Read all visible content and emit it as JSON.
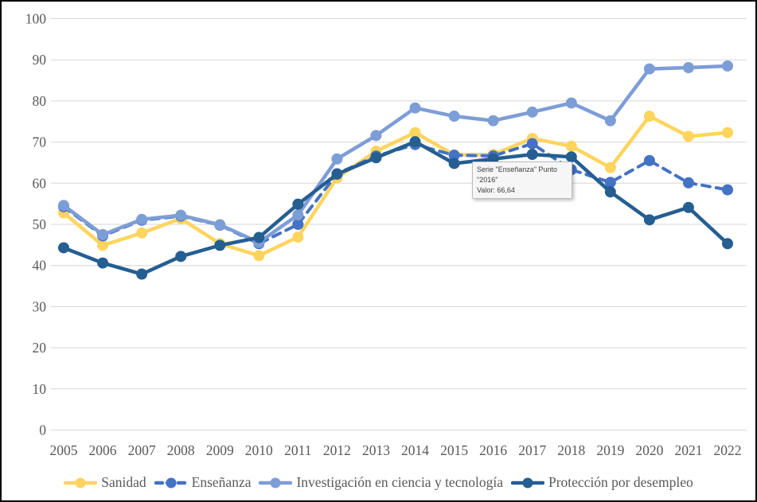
{
  "chart_data": {
    "type": "line",
    "title": "",
    "xlabel": "",
    "ylabel": "",
    "ylim": [
      0,
      100
    ],
    "ytick_step": 10,
    "grid": true,
    "legend_position": "bottom",
    "categories": [
      "2005",
      "2006",
      "2007",
      "2008",
      "2009",
      "2010",
      "2011",
      "2012",
      "2013",
      "2014",
      "2015",
      "2016",
      "2017",
      "2018",
      "2019",
      "2020",
      "2021",
      "2022"
    ],
    "series": [
      {
        "name": "Sanidad",
        "color": "#FFD45E",
        "dash": "solid",
        "values": [
          52.8,
          44.9,
          47.9,
          51.4,
          45.3,
          42.4,
          46.9,
          61.3,
          67.8,
          72.3,
          66.9,
          67.0,
          70.9,
          69.0,
          63.8,
          76.3,
          71.4,
          72.3
        ]
      },
      {
        "name": "Enseñanza",
        "color": "#4472C4",
        "dash": "dashed",
        "values": [
          54.3,
          47.2,
          51.0,
          52.0,
          49.8,
          45.3,
          50.0,
          62.3,
          66.6,
          69.4,
          66.8,
          66.64,
          69.6,
          63.3,
          60.2,
          65.5,
          60.1,
          58.4
        ]
      },
      {
        "name": "Investigación en ciencia y tecnología",
        "color": "#7D9DD6",
        "dash": "solid",
        "values": [
          54.6,
          47.5,
          51.2,
          52.2,
          49.9,
          45.6,
          52.3,
          65.9,
          71.6,
          78.3,
          76.3,
          75.2,
          77.3,
          79.5,
          75.2,
          87.8,
          88.1,
          88.5
        ]
      },
      {
        "name": "Protección por desempleo",
        "color": "#255E91",
        "dash": "solid",
        "values": [
          44.3,
          40.6,
          37.9,
          42.2,
          44.9,
          46.8,
          54.9,
          62.2,
          66.2,
          70.1,
          64.8,
          65.9,
          67.0,
          66.4,
          57.9,
          51.1,
          54.1,
          45.3
        ]
      }
    ]
  },
  "tooltip": {
    "line1": "Serie \"Enseñanza\" Punto \"2016\"",
    "line2": "Valor: 66,64"
  },
  "colors": {
    "axis_text": "#595959",
    "gridline": "#D6D6D6",
    "frame_border": "#000000",
    "tooltip_background": "#F6F6F6",
    "tooltip_border": "#BCBCBC"
  }
}
